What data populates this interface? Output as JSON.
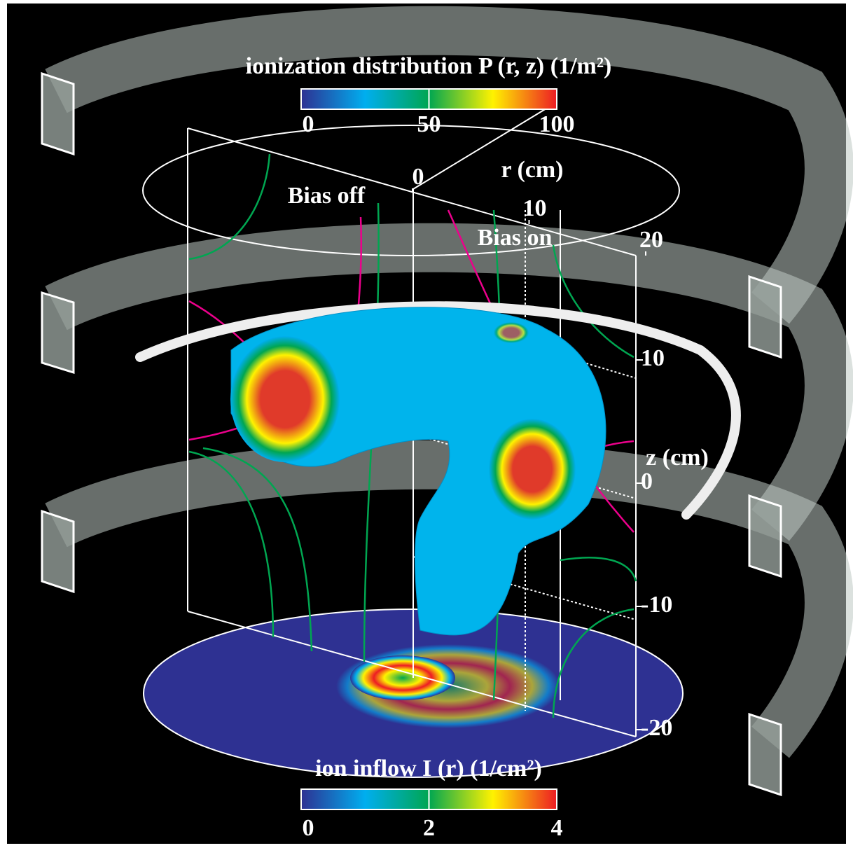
{
  "colorbars": [
    {
      "title": "ionization distribution P (r, z) (1/m²)",
      "ticks": [
        0,
        50,
        100
      ]
    },
    {
      "title": "ion inflow I (r) (1/cm²)",
      "ticks": [
        0,
        2,
        4
      ]
    }
  ],
  "r_axis": {
    "label": "r (cm)",
    "ticks": [
      0,
      10,
      20
    ]
  },
  "z_axis": {
    "label": "z (cm)",
    "ticks": [
      10,
      0,
      -10,
      -20
    ]
  },
  "annotations": [
    "Bias off",
    "Bias on"
  ]
}
